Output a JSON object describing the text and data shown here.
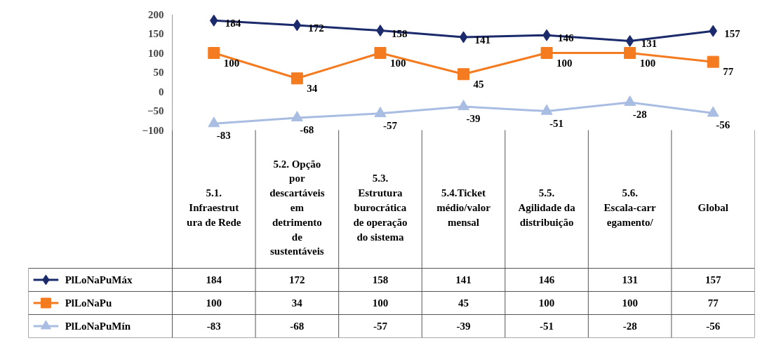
{
  "chart_data": {
    "type": "line",
    "categories": [
      "5.1. Infraestrutura de Rede",
      "5.2. Opção por descartáveis em detrimento de sustentáveis",
      "5.3. Estrutura burocrática de operação do sistema",
      "5.4.Ticket médio/valor mensal",
      "5.5. Agilidade da distribuição",
      "5.6. Escala-carregamento/",
      "Global"
    ],
    "series": [
      {
        "name": "PlLoNaPuMáx",
        "color": "#1b2a6b",
        "marker": "diamond",
        "values": [
          184,
          172,
          158,
          141,
          146,
          131,
          157
        ],
        "value_labels": [
          "184",
          "172",
          "158",
          "141",
          "146",
          "131",
          "157"
        ]
      },
      {
        "name": "PlLoNaPu",
        "color": "#f47b20",
        "marker": "square",
        "values": [
          100,
          34,
          100,
          45,
          100,
          100,
          77
        ],
        "value_labels": [
          "100",
          "34",
          "100",
          "45",
          "100",
          "100",
          "77"
        ]
      },
      {
        "name": "PlLoNaPuMín",
        "color": "#a9bde3",
        "marker": "triangle",
        "values": [
          -83,
          -68,
          -57,
          -39,
          -51,
          -28,
          -56
        ],
        "value_labels": [
          "-83",
          "-68",
          "-57",
          "-39",
          "-51",
          "-28",
          "-56"
        ]
      }
    ],
    "ylim": [
      -100,
      200
    ],
    "yticks": [
      -100,
      -50,
      0,
      50,
      100,
      150,
      200
    ],
    "data_labels": true,
    "legend": "bottom left",
    "tick_labels": "y",
    "grid": false
  }
}
